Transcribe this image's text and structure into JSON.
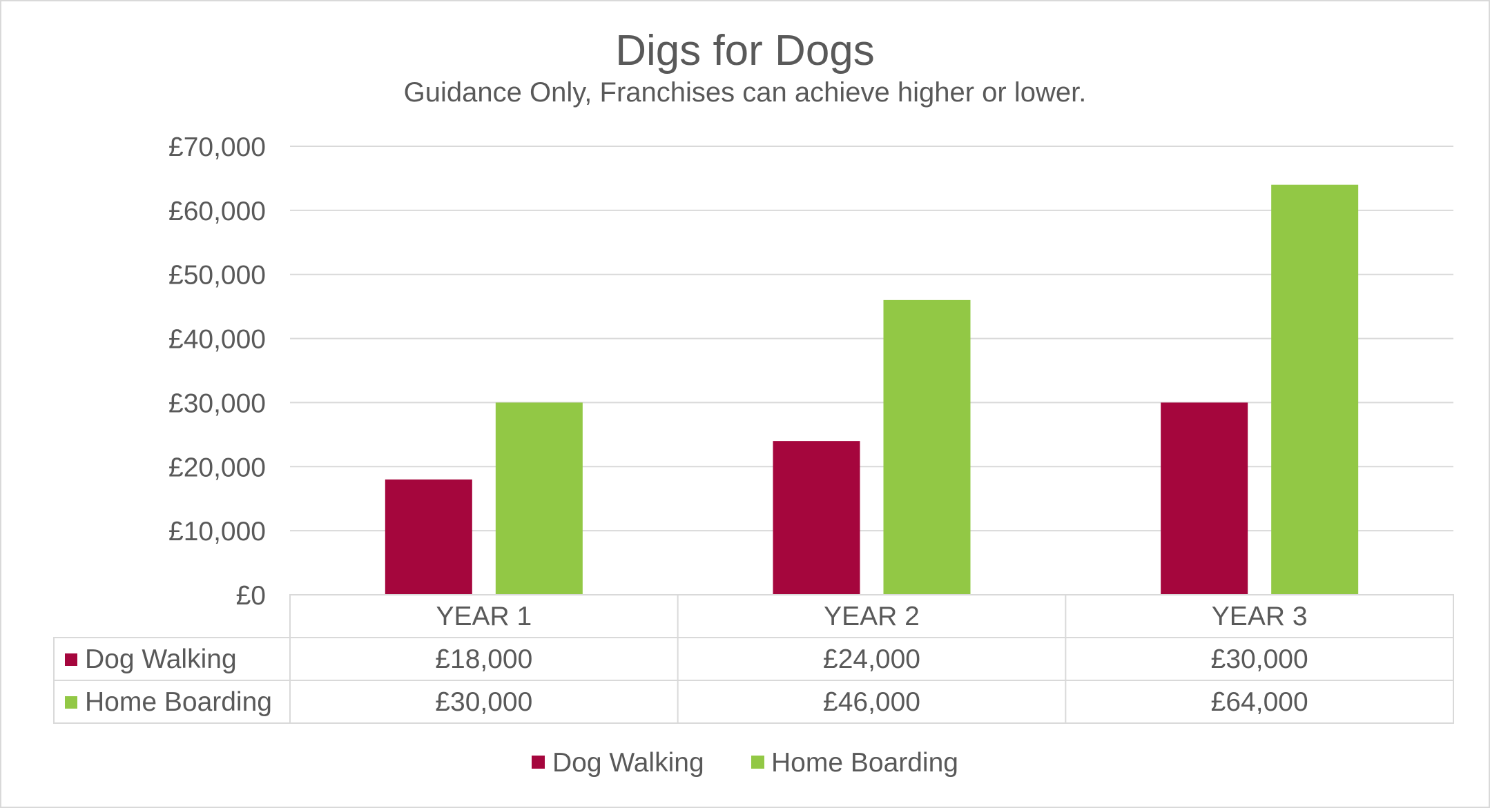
{
  "chart_data": {
    "type": "bar",
    "title": "Digs for Dogs",
    "subtitle": "Guidance Only, Franchises can achieve higher or lower.",
    "categories": [
      "YEAR 1",
      "YEAR 2",
      "YEAR 3"
    ],
    "series": [
      {
        "name": "Dog Walking",
        "values": [
          18000,
          24000,
          30000
        ],
        "labels": [
          "£18,000",
          "£24,000",
          "£30,000"
        ],
        "color": "#a5063d"
      },
      {
        "name": "Home Boarding",
        "values": [
          30000,
          46000,
          64000
        ],
        "labels": [
          "£30,000",
          "£46,000",
          "£64,000"
        ],
        "color": "#92c845"
      }
    ],
    "ylim": [
      0,
      70000
    ],
    "yticks": [
      0,
      10000,
      20000,
      30000,
      40000,
      50000,
      60000,
      70000
    ],
    "ytick_labels": [
      "£0",
      "£10,000",
      "£20,000",
      "£30,000",
      "£40,000",
      "£50,000",
      "£60,000",
      "£70,000"
    ],
    "grid": true,
    "legend_position": "bottom",
    "data_table": true
  }
}
